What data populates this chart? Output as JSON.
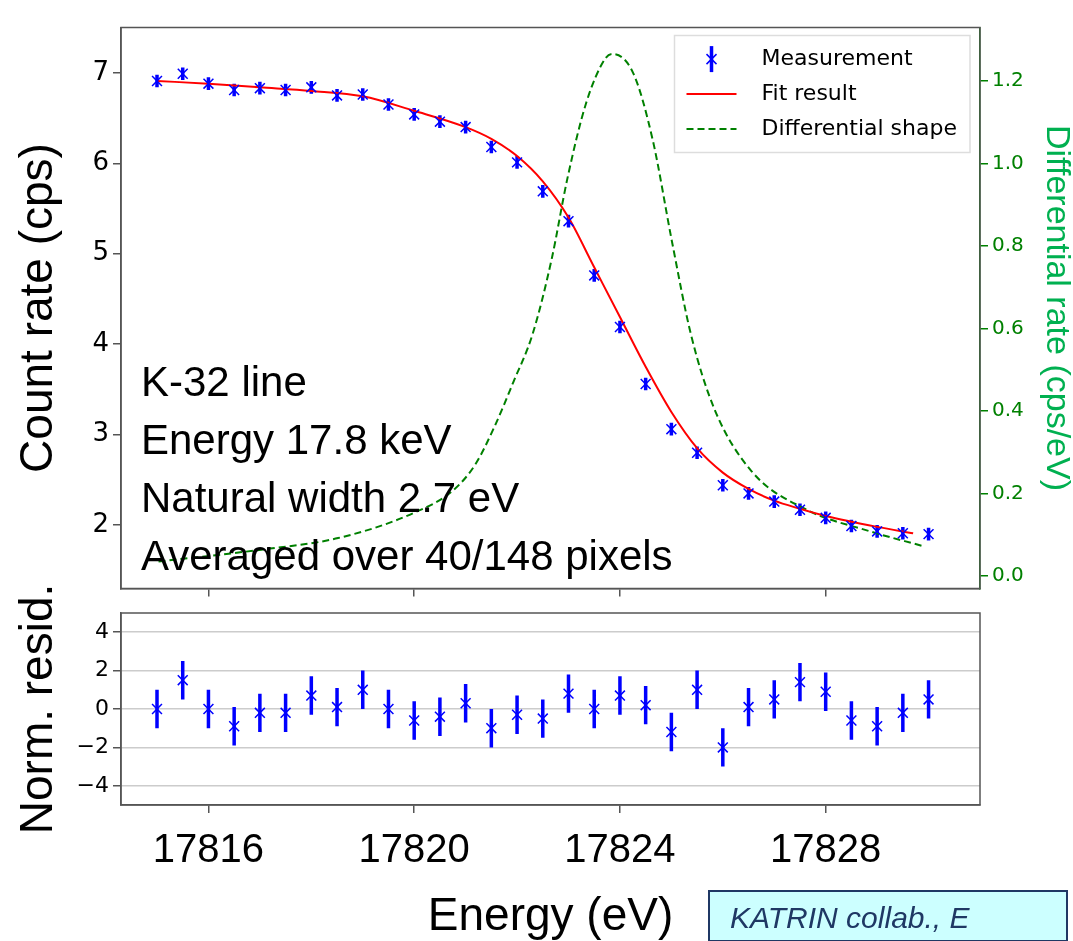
{
  "chart_data": [
    {
      "type": "scatter",
      "ylabel": "Count rate (cps)",
      "y2label": "Differential rate (cps/eV)",
      "xlim": [
        17814.3,
        17831
      ],
      "xticks": [
        17816,
        17820,
        17824,
        17828
      ],
      "ylim": [
        1.3,
        7.5
      ],
      "yticks": [
        2,
        3,
        4,
        5,
        6,
        7
      ],
      "y2lim": [
        -0.03,
        1.33
      ],
      "y2ticks": [
        {
          "value": 0,
          "label": "0.0"
        },
        0.2,
        0.4,
        0.6,
        0.8,
        {
          "value": 1,
          "label": "1.0"
        },
        1.2
      ],
      "tick_labels": "y",
      "legend": "top right",
      "grid": false,
      "annotations": [
        "K-32 line",
        "Energy 17.8 keV",
        "Natural width 2.7 eV",
        "Averaged over 40/148 pixels"
      ],
      "series": [
        {
          "name": "Measurement",
          "color": "#0000ff",
          "marker": "cross",
          "x": [
            17815,
            17815.5,
            17816,
            17816.5,
            17817,
            17817.5,
            17818,
            17818.5,
            17819,
            17819.5,
            17820,
            17820.5,
            17821,
            17821.5,
            17822,
            17822.5,
            17823,
            17823.5,
            17824,
            17824.5,
            17825,
            17825.5,
            17826,
            17826.5,
            17827,
            17827.5,
            17828,
            17828.5,
            17829,
            17829.5,
            17830
          ],
          "values": [
            6.91,
            6.99,
            6.88,
            6.81,
            6.83,
            6.81,
            6.84,
            6.75,
            6.76,
            6.65,
            6.54,
            6.46,
            6.4,
            6.18,
            6.01,
            5.69,
            5.36,
            4.76,
            4.19,
            3.56,
            3.06,
            2.8,
            2.44,
            2.35,
            2.26,
            2.17,
            2.08,
            1.99,
            1.93,
            1.91,
            1.9
          ],
          "errors": [
            0.07,
            0.07,
            0.07,
            0.07,
            0.07,
            0.07,
            0.07,
            0.07,
            0.07,
            0.07,
            0.07,
            0.07,
            0.07,
            0.07,
            0.07,
            0.07,
            0.07,
            0.07,
            0.07,
            0.07,
            0.07,
            0.07,
            0.07,
            0.07,
            0.07,
            0.07,
            0.07,
            0.07,
            0.07,
            0.07,
            0.07
          ]
        },
        {
          "name": "Fit result",
          "type": "line",
          "color": "#ff0000",
          "marker": "none",
          "line_style": "solid",
          "x": [
            17815,
            17816,
            17817,
            17818,
            17819,
            17820,
            17821,
            17821.5,
            17822,
            17822.5,
            17823,
            17823.5,
            17824,
            17824.5,
            17825,
            17825.5,
            17826,
            17826.5,
            17827,
            17827.5,
            17828,
            17829,
            17829.7
          ],
          "values": [
            6.91,
            6.88,
            6.84,
            6.8,
            6.74,
            6.58,
            6.4,
            6.27,
            6.08,
            5.8,
            5.4,
            4.85,
            4.3,
            3.75,
            3.25,
            2.85,
            2.58,
            2.4,
            2.27,
            2.18,
            2.1,
            1.98,
            1.91
          ]
        },
        {
          "name": "Differential shape",
          "type": "line",
          "axis": "y2",
          "color": "#008000",
          "marker": "none",
          "line_style": "dashed",
          "x": [
            17815.03,
            17817.03,
            17818.52,
            17819.99,
            17820.75,
            17821.19,
            17821.56,
            17821.93,
            17822.3,
            17822.67,
            17822.98,
            17823.34,
            17823.71,
            17823.85,
            17824.26,
            17824.64,
            17825.01,
            17825.38,
            17825.83,
            17826.56,
            17827.61,
            17828.87,
            17829.88
          ],
          "values": [
            0.035,
            0.064,
            0.092,
            0.153,
            0.207,
            0.271,
            0.362,
            0.471,
            0.586,
            0.767,
            0.965,
            1.146,
            1.254,
            1.266,
            1.219,
            1.056,
            0.812,
            0.586,
            0.407,
            0.254,
            0.162,
            0.108,
            0.073
          ]
        }
      ]
    },
    {
      "type": "scatter",
      "xlabel": "Energy (eV)",
      "ylabel": "Norm. resid.",
      "xlim": [
        17814.3,
        17831
      ],
      "xticks": [
        17816,
        17820,
        17824,
        17828
      ],
      "ylim": [
        -5,
        5
      ],
      "yticks": [
        {
          "value": -4,
          "label": "−4"
        },
        {
          "value": -2,
          "label": "−2"
        },
        0,
        2,
        4
      ],
      "grid": "y",
      "annotations": [
        "KATRIN collab., E"
      ],
      "series": [
        {
          "color": "#0000ff",
          "marker": "cross",
          "x": [
            17815,
            17815.5,
            17816,
            17816.5,
            17817,
            17817.5,
            17818,
            17818.5,
            17819,
            17819.5,
            17820,
            17820.5,
            17821,
            17821.5,
            17822,
            17822.5,
            17823,
            17823.5,
            17824,
            17824.5,
            17825,
            17825.5,
            17826,
            17826.5,
            17827,
            17827.5,
            17828,
            17828.5,
            17829,
            17829.5,
            17830
          ],
          "values": [
            0.0,
            1.5,
            0.0,
            -0.9,
            -0.2,
            -0.2,
            0.7,
            0.1,
            1.0,
            0.0,
            -0.6,
            -0.4,
            0.3,
            -1.0,
            -0.3,
            -0.5,
            0.8,
            0.0,
            0.7,
            0.2,
            -1.2,
            1.0,
            -2.0,
            0.1,
            0.5,
            1.4,
            0.9,
            -0.6,
            -0.9,
            -0.2,
            0.5
          ],
          "errors": [
            1,
            1,
            1,
            1,
            1,
            1,
            1,
            1,
            1,
            1,
            1,
            1,
            1,
            1,
            1,
            1,
            1,
            1,
            1,
            1,
            1,
            1,
            1,
            1,
            1,
            1,
            1,
            1,
            1,
            1,
            1
          ]
        }
      ]
    }
  ]
}
